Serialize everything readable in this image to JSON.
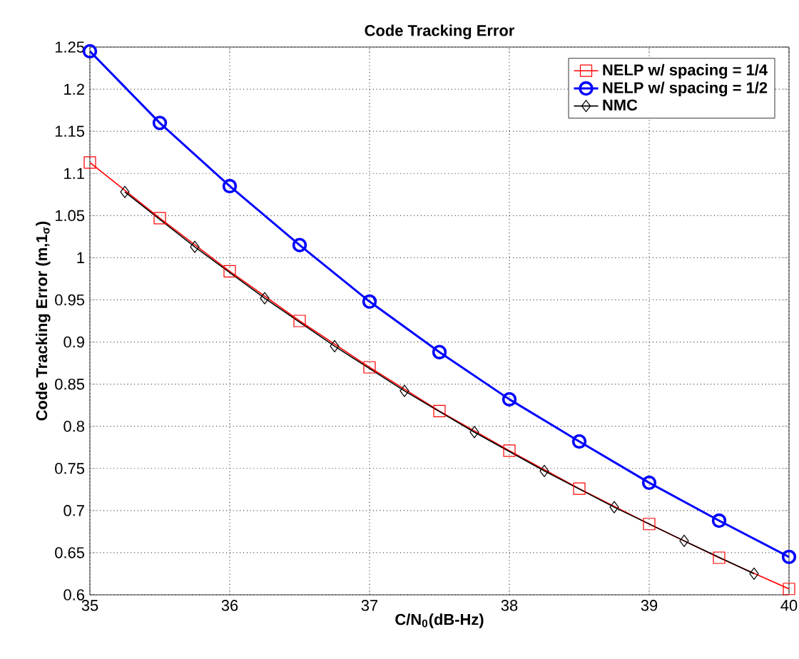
{
  "chart_data": {
    "type": "line",
    "title": "Code Tracking Error",
    "xlabel": "C/N$_{0}$(dB-Hz)",
    "ylabel": "Code Tracking Error (m,1$_{σ}$)",
    "xlim": [
      35,
      40
    ],
    "xticks": [
      35,
      36,
      37,
      38,
      39,
      40
    ],
    "ylim": [
      0.6,
      1.25
    ],
    "yticks": [
      0.6,
      0.65,
      0.7,
      0.75,
      0.8,
      0.85,
      0.9,
      0.95,
      1,
      1.05,
      1.1,
      1.15,
      1.2,
      1.25
    ],
    "grid": true,
    "legend": "top right",
    "series": [
      {
        "name": "NELP w/ spacing = 1/4",
        "color": "#ff0000",
        "marker": "square",
        "x": [
          35,
          35.5,
          36,
          36.5,
          37,
          37.5,
          38,
          38.5,
          39,
          39.5,
          40
        ],
        "values": [
          1.113,
          1.047,
          0.984,
          0.925,
          0.87,
          0.818,
          0.771,
          0.726,
          0.684,
          0.644,
          0.607
        ]
      },
      {
        "name": "NELP w/ spacing = 1/2",
        "color": "#0000ff",
        "marker": "circle",
        "x": [
          35,
          35.5,
          36,
          36.5,
          37,
          37.5,
          38,
          38.5,
          39,
          39.5,
          40
        ],
        "values": [
          1.245,
          1.16,
          1.085,
          1.015,
          0.948,
          0.888,
          0.832,
          0.782,
          0.733,
          0.688,
          0.645
        ]
      },
      {
        "name": "NMC",
        "color": "#000000",
        "marker": "diamond",
        "x": [
          35.25,
          35.75,
          36.25,
          36.75,
          37.25,
          37.75,
          38.25,
          38.75,
          39.25,
          39.75
        ],
        "values": [
          1.078,
          1.013,
          0.952,
          0.895,
          0.842,
          0.793,
          0.747,
          0.704,
          0.664,
          0.625
        ]
      }
    ]
  }
}
